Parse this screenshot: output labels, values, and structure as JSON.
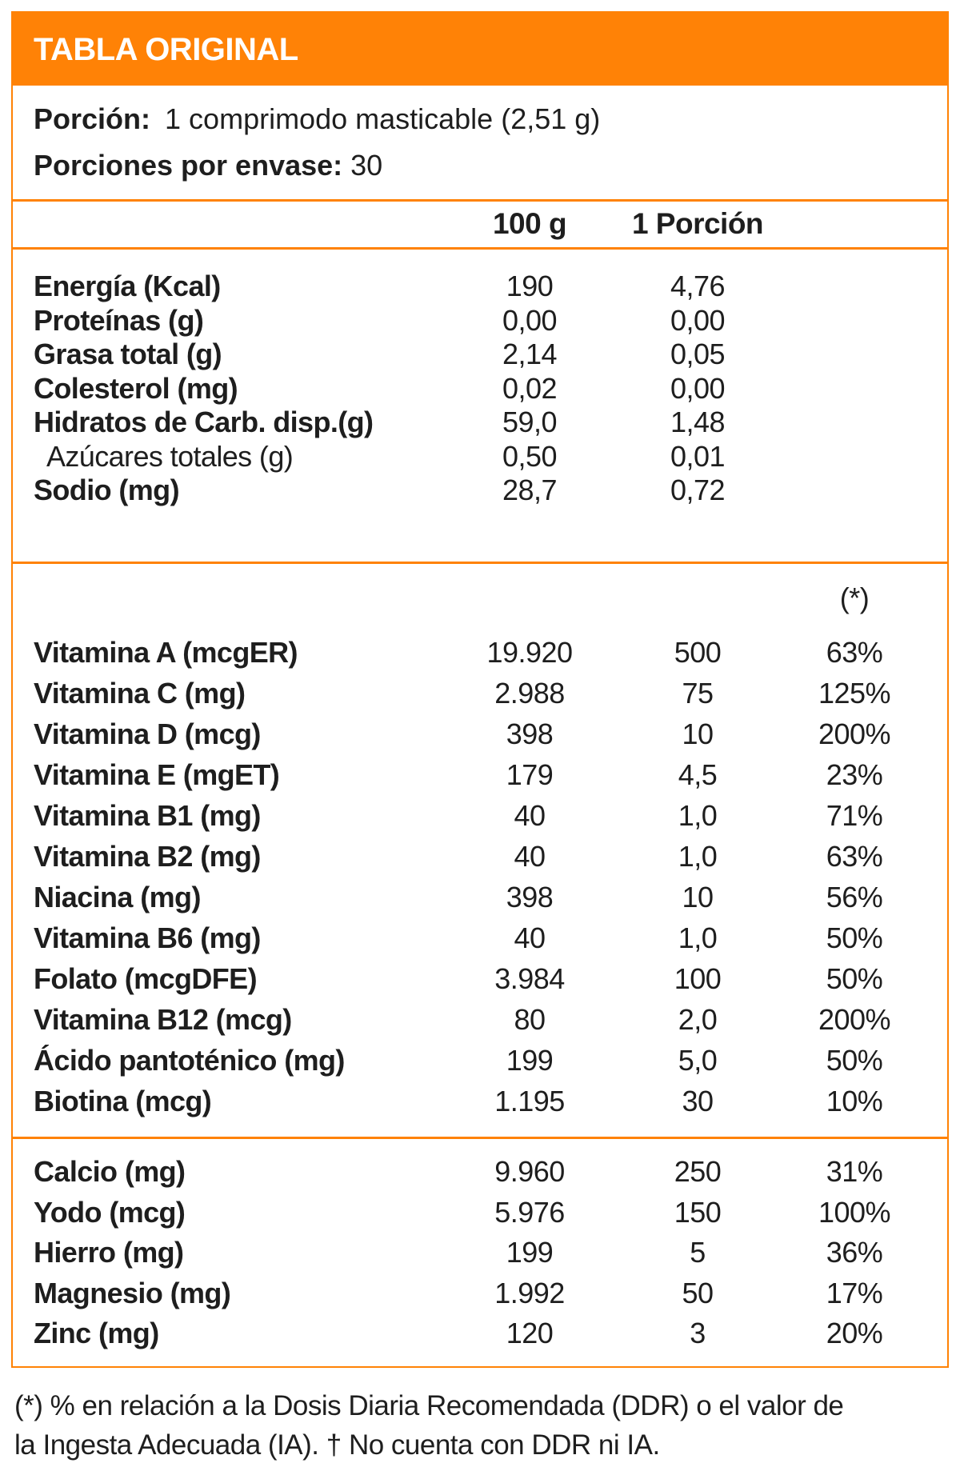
{
  "header": {
    "title": "TABLA ORIGINAL"
  },
  "serving": {
    "portion_label": "Porción:",
    "portion_value": "1 comprimodo masticable (2,51 g)",
    "servings_label": "Porciones por envase:",
    "servings_value": "30"
  },
  "columns": {
    "per_100g": "100 g",
    "per_portion": "1 Porción",
    "percent_note": "(*)"
  },
  "nutrients": [
    {
      "name": "Energía (Kcal)",
      "per_100g": "190",
      "per_portion": "4,76"
    },
    {
      "name": "Proteínas (g)",
      "per_100g": "0,00",
      "per_portion": "0,00"
    },
    {
      "name": "Grasa total (g)",
      "per_100g": "2,14",
      "per_portion": "0,05"
    },
    {
      "name": "Colesterol (mg)",
      "per_100g": "0,02",
      "per_portion": "0,00"
    },
    {
      "name": "Hidratos de Carb. disp.(g)",
      "per_100g": "59,0",
      "per_portion": "1,48"
    },
    {
      "name": "Azúcares totales (g)",
      "per_100g": "0,50",
      "per_portion": "0,01",
      "sub": true
    },
    {
      "name": "Sodio (mg)",
      "per_100g": "28,7",
      "per_portion": "0,72"
    }
  ],
  "vitamins": [
    {
      "name": "Vitamina A (mcgER)",
      "per_100g": "19.920",
      "per_portion": "500",
      "percent": "63%"
    },
    {
      "name": "Vitamina C (mg)",
      "per_100g": "2.988",
      "per_portion": "75",
      "percent": "125%"
    },
    {
      "name": "Vitamina D (mcg)",
      "per_100g": "398",
      "per_portion": "10",
      "percent": "200%"
    },
    {
      "name": "Vitamina E (mgET)",
      "per_100g": "179",
      "per_portion": "4,5",
      "percent": "23%"
    },
    {
      "name": "Vitamina B1 (mg)",
      "per_100g": "40",
      "per_portion": "1,0",
      "percent": "71%"
    },
    {
      "name": "Vitamina B2 (mg)",
      "per_100g": "40",
      "per_portion": "1,0",
      "percent": "63%"
    },
    {
      "name": "Niacina (mg)",
      "per_100g": "398",
      "per_portion": "10",
      "percent": "56%"
    },
    {
      "name": "Vitamina B6 (mg)",
      "per_100g": "40",
      "per_portion": "1,0",
      "percent": "50%"
    },
    {
      "name": "Folato (mcgDFE)",
      "per_100g": "3.984",
      "per_portion": "100",
      "percent": "50%"
    },
    {
      "name": "Vitamina B12 (mcg)",
      "per_100g": "80",
      "per_portion": "2,0",
      "percent": "200%"
    },
    {
      "name": "Ácido pantoténico (mg)",
      "per_100g": "199",
      "per_portion": "5,0",
      "percent": "50%"
    },
    {
      "name": "Biotina (mcg)",
      "per_100g": "1.195",
      "per_portion": "30",
      "percent": "10%"
    }
  ],
  "minerals": [
    {
      "name": "Calcio (mg)",
      "per_100g": "9.960",
      "per_portion": "250",
      "percent": "31%"
    },
    {
      "name": "Yodo (mcg)",
      "per_100g": "5.976",
      "per_portion": "150",
      "percent": "100%"
    },
    {
      "name": "Hierro (mg)",
      "per_100g": "199",
      "per_portion": "5",
      "percent": "36%"
    },
    {
      "name": "Magnesio (mg)",
      "per_100g": "1.992",
      "per_portion": "50",
      "percent": "17%"
    },
    {
      "name": "Zinc (mg)",
      "per_100g": "120",
      "per_portion": "3",
      "percent": "20%"
    }
  ],
  "footnote": {
    "line1": "(*) % en relación a la Dosis Diaria Recomendada (DDR) o el valor de",
    "line2": "la Ingesta Adecuada (IA). † No cuenta con DDR ni IA."
  },
  "colors": {
    "accent": "#FF8206",
    "text": "#1e1e1e",
    "header_text": "#ffffff"
  }
}
